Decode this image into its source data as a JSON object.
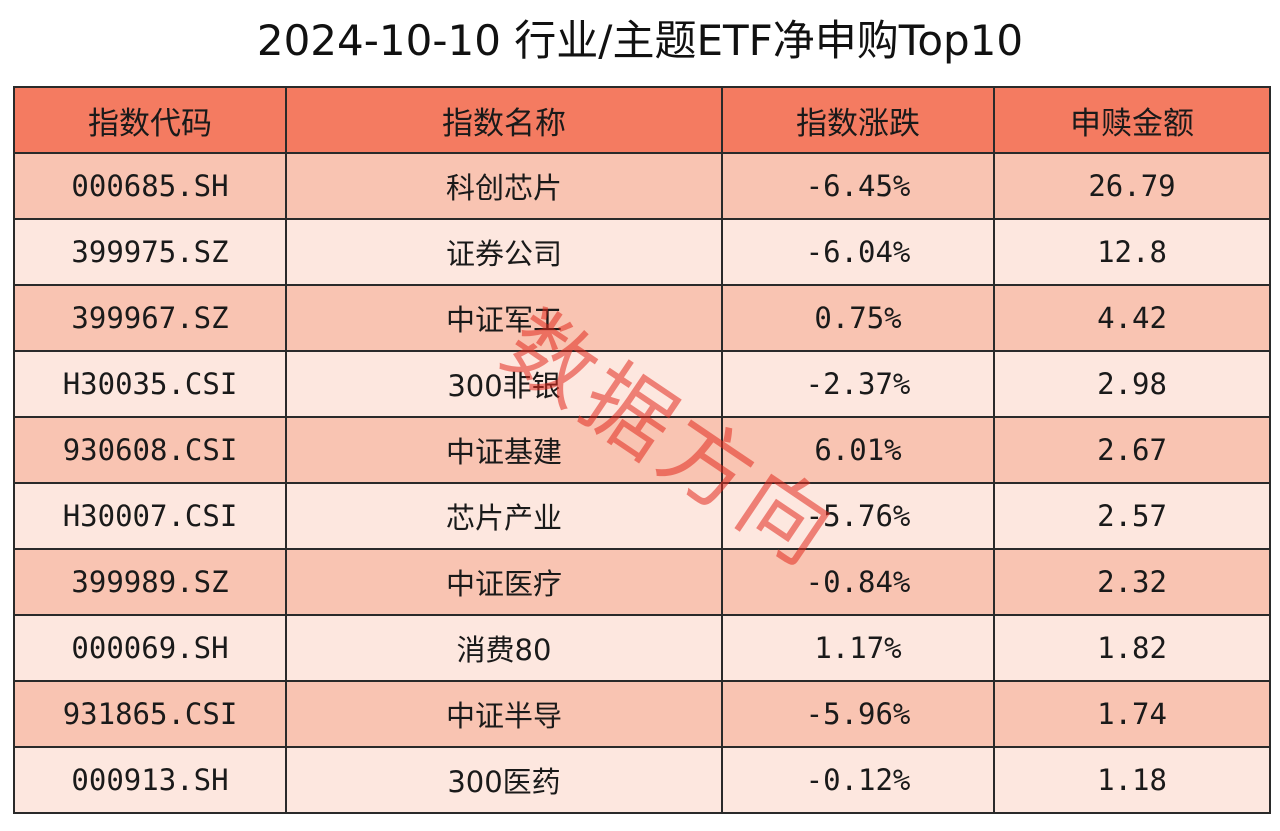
{
  "title": "2024-10-10 行业/主题ETF净申购Top10",
  "colors": {
    "header_bg": "#f47b61",
    "row_odd_bg": "#f9c4b2",
    "row_even_bg": "#fde7df",
    "watermark": "#e22a1e"
  },
  "table": {
    "headers": [
      "指数代码",
      "指数名称",
      "指数涨跌",
      "申赎金额"
    ],
    "rows": [
      [
        "000685.SH",
        "科创芯片",
        "-6.45%",
        "26.79"
      ],
      [
        "399975.SZ",
        "证券公司",
        "-6.04%",
        "12.8"
      ],
      [
        "399967.SZ",
        "中证军工",
        "0.75%",
        "4.42"
      ],
      [
        "H30035.CSI",
        "300非银",
        "-2.37%",
        "2.98"
      ],
      [
        "930608.CSI",
        "中证基建",
        "6.01%",
        "2.67"
      ],
      [
        "H30007.CSI",
        "芯片产业",
        "-5.76%",
        "2.57"
      ],
      [
        "399989.SZ",
        "中证医疗",
        "-0.84%",
        "2.32"
      ],
      [
        "000069.SH",
        "消费80",
        "1.17%",
        "1.82"
      ],
      [
        "931865.CSI",
        "中证半导",
        "-5.96%",
        "1.74"
      ],
      [
        "000913.SH",
        "300医药",
        "-0.12%",
        "1.18"
      ]
    ]
  },
  "watermark": "数据方向"
}
